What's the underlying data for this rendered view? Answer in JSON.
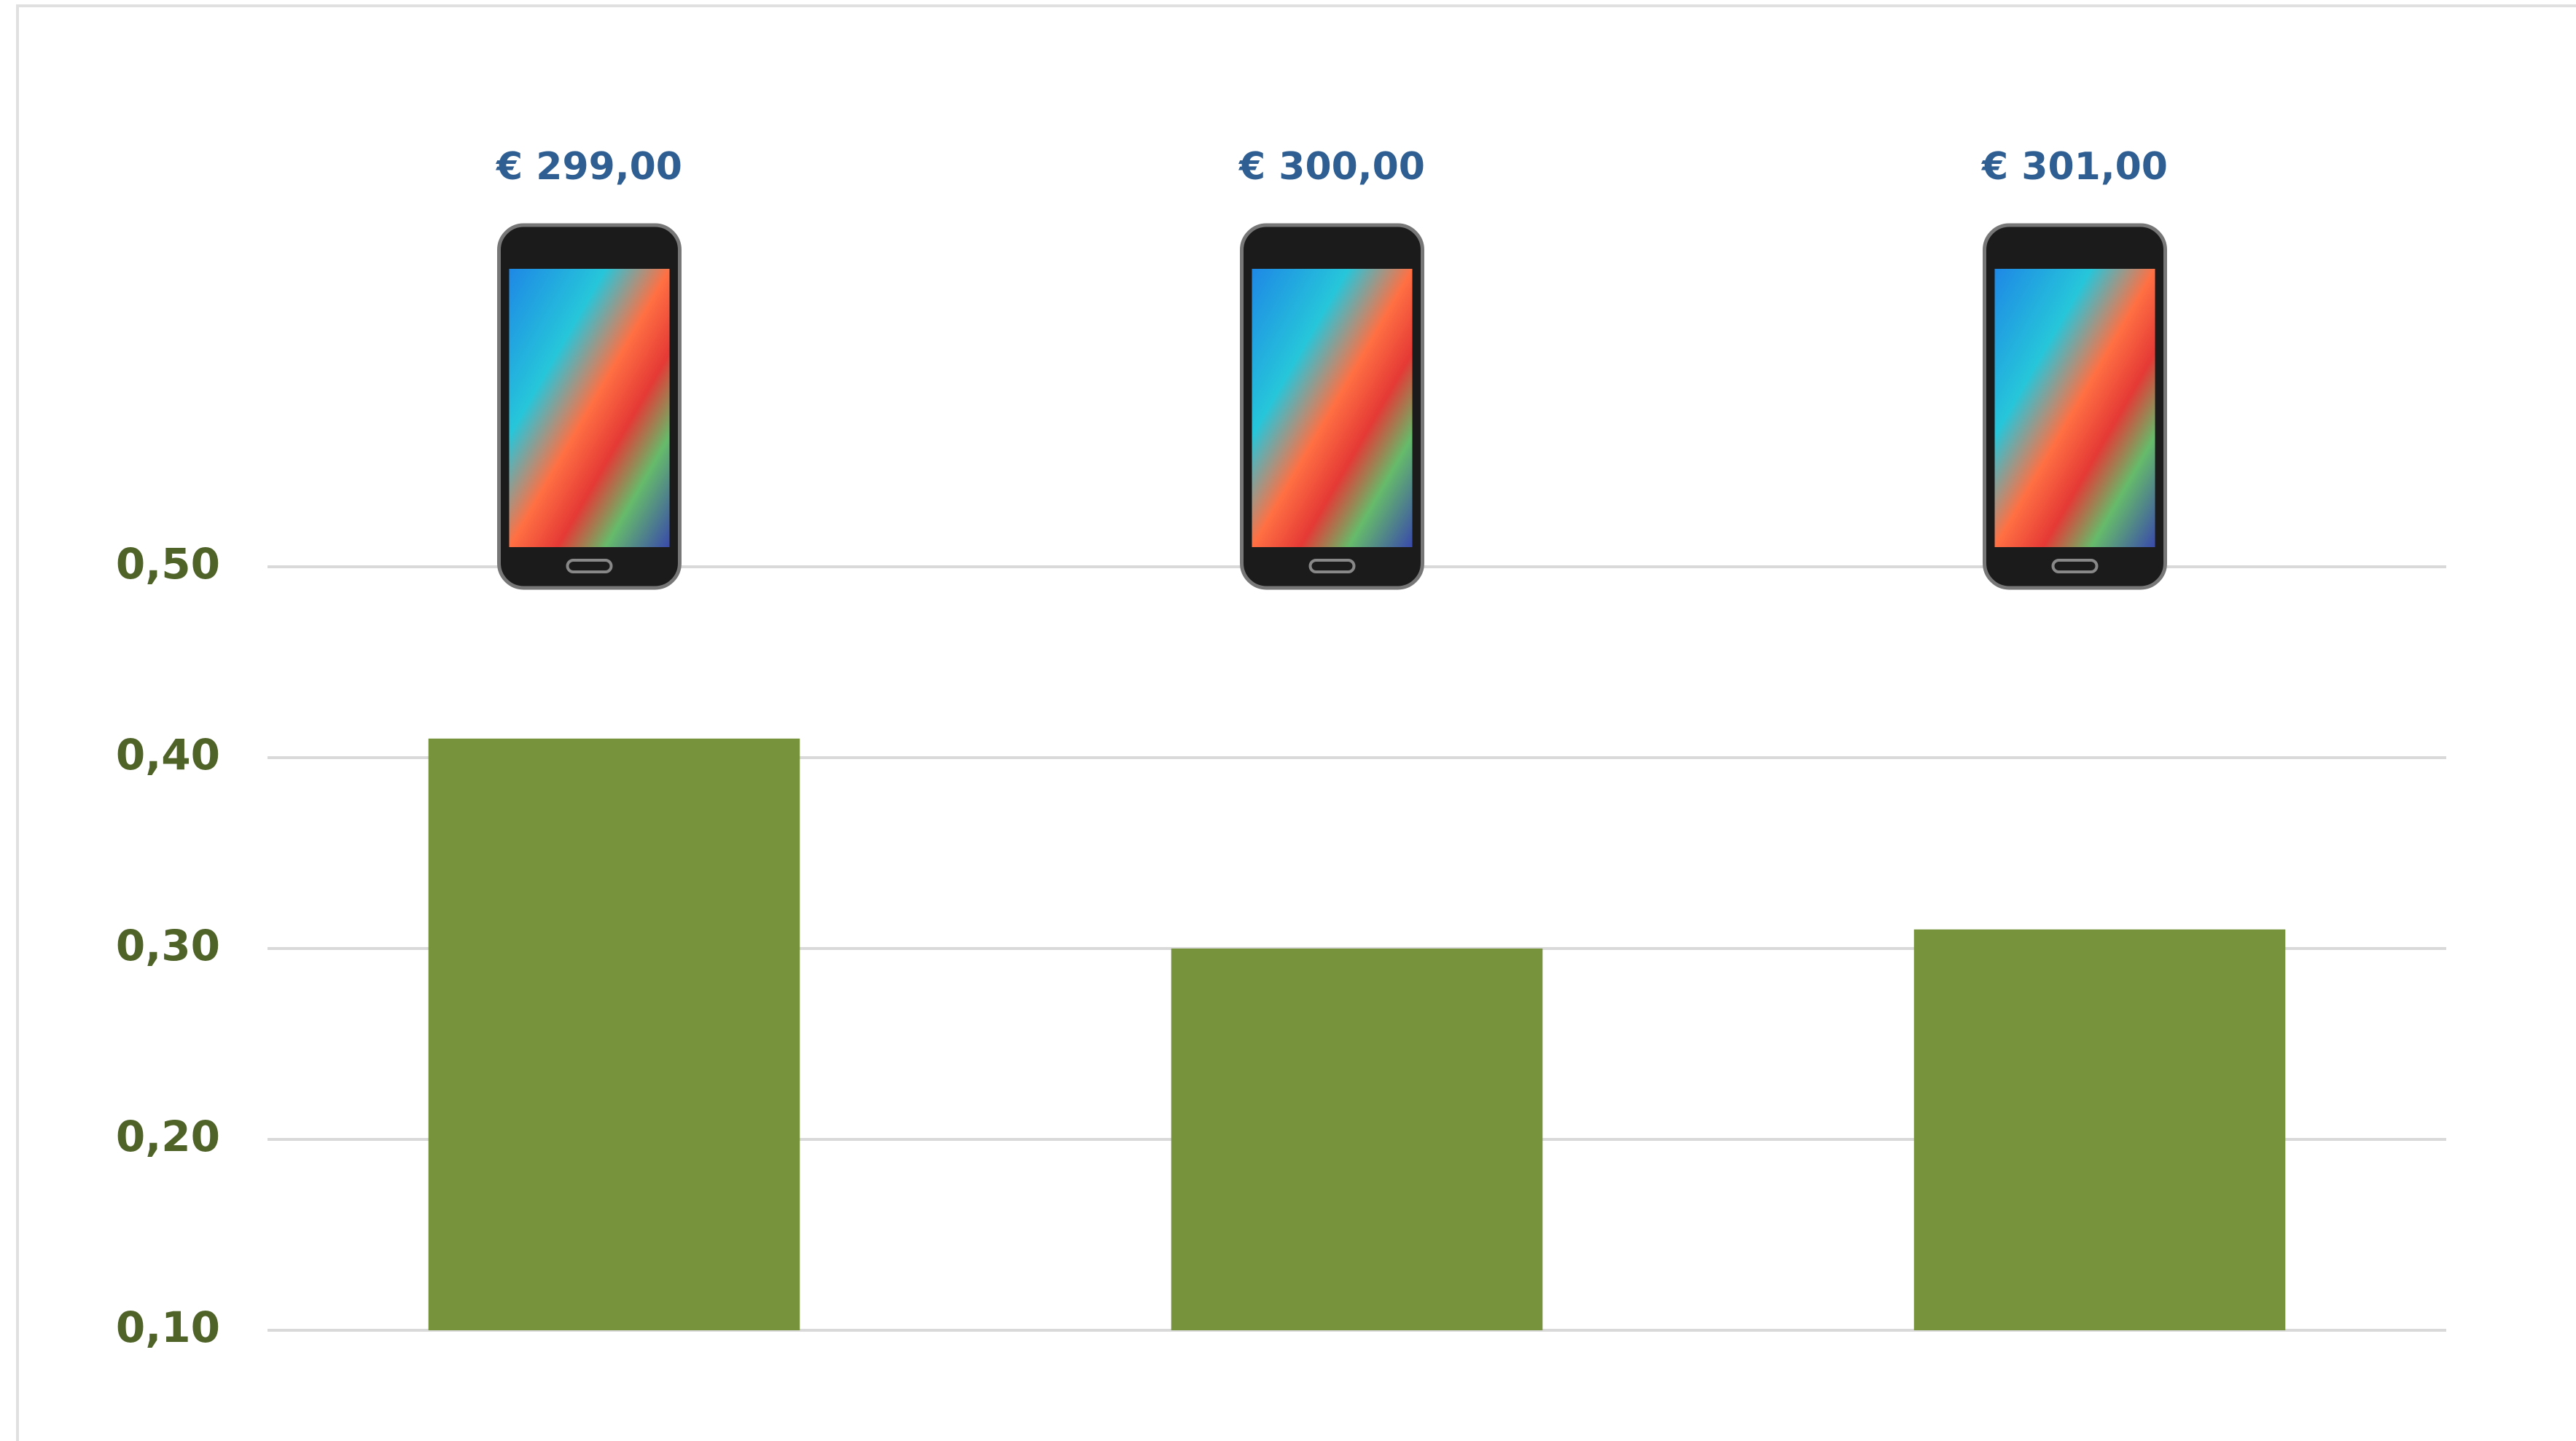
{
  "chart_data": {
    "type": "bar",
    "categories": [
      "€ 299,00",
      "€ 300,00",
      "€ 301,00"
    ],
    "values": [
      0.41,
      0.3,
      0.31
    ],
    "color": "#77933c",
    "ylim": [
      0.1,
      0.5
    ],
    "yticks": [
      {
        "value": 0.1,
        "label": "0,10"
      },
      {
        "value": 0.2,
        "label": "0,20"
      },
      {
        "value": 0.3,
        "label": "0,30"
      },
      {
        "value": 0.4,
        "label": "0,40"
      },
      {
        "value": 0.5,
        "label": "0,50"
      }
    ],
    "grid": true
  }
}
